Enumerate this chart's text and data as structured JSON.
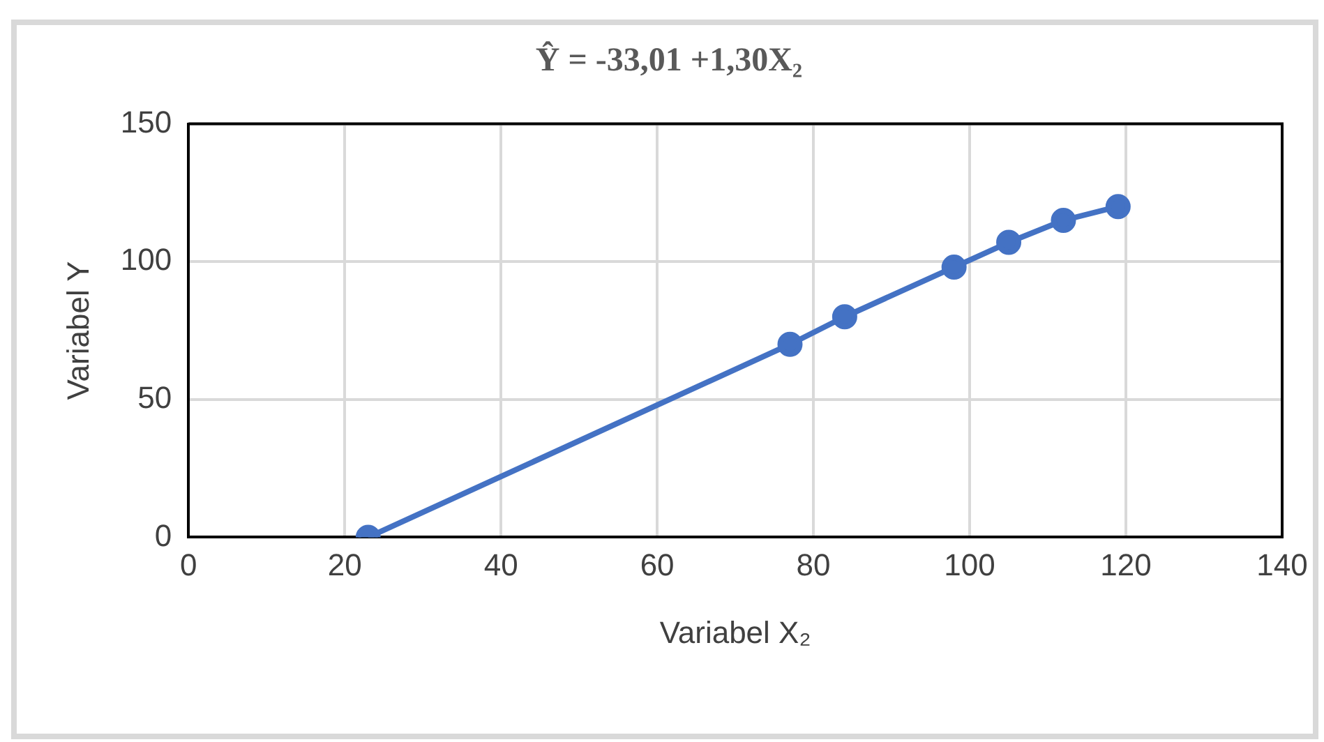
{
  "chart_data": {
    "type": "line",
    "title": "Ŷ = -33,01 +1,30X₂",
    "xlabel": "Variabel X₂",
    "ylabel": "Variabel Y",
    "x": [
      23,
      77,
      84,
      98,
      105,
      112,
      119
    ],
    "series": [
      {
        "color": "#4472c4",
        "values": [
          0,
          70,
          80,
          98,
          107,
          115,
          120
        ]
      }
    ],
    "xlim": [
      0,
      140
    ],
    "xticks": [
      0,
      20,
      40,
      60,
      80,
      100,
      120,
      140
    ],
    "ylim": [
      0,
      150
    ],
    "yticks": [
      0,
      50,
      100,
      150
    ],
    "grid": true,
    "legend": false,
    "marker": "circle",
    "line_style": "solid"
  }
}
